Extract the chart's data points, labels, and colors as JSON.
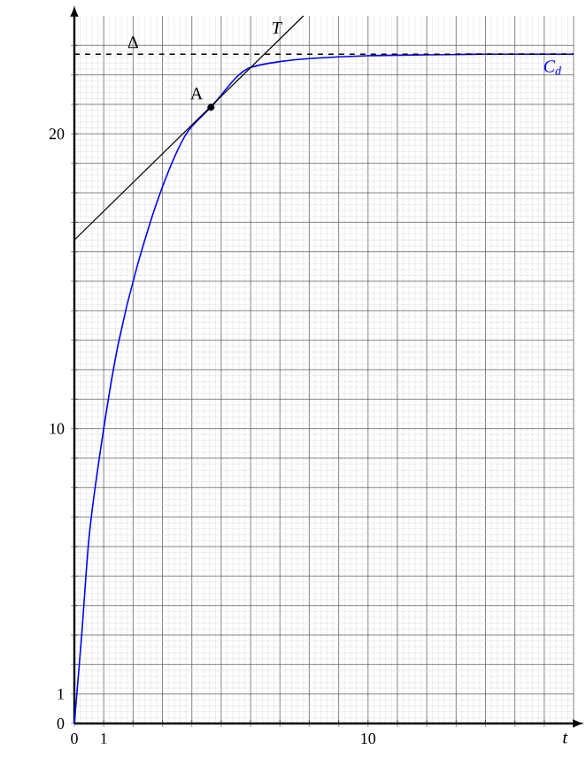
{
  "chart_data": {
    "type": "line",
    "xlabel": "t",
    "xlim": [
      0,
      17
    ],
    "ylim": [
      0,
      24
    ],
    "xticks": [
      0,
      1,
      {
        "value": 2,
        "label": null
      },
      {
        "value": 3,
        "label": null
      },
      {
        "value": 4,
        "label": null
      },
      {
        "value": 5,
        "label": null
      },
      {
        "value": 6,
        "label": null
      },
      {
        "value": 7,
        "label": null
      },
      {
        "value": 8,
        "label": null
      },
      {
        "value": 9,
        "label": null
      },
      10,
      {
        "value": 11,
        "label": null
      },
      {
        "value": 12,
        "label": null
      },
      {
        "value": 13,
        "label": null
      },
      {
        "value": 14,
        "label": null
      },
      {
        "value": 15,
        "label": null
      },
      {
        "value": 16,
        "label": null
      },
      {
        "value": 17,
        "label": null
      }
    ],
    "yticks": [
      0,
      1,
      {
        "value": 2,
        "label": null
      },
      {
        "value": 3,
        "label": null
      },
      {
        "value": 4,
        "label": null
      },
      {
        "value": 5,
        "label": null
      },
      {
        "value": 6,
        "label": null
      },
      {
        "value": 7,
        "label": null
      },
      {
        "value": 8,
        "label": null
      },
      {
        "value": 9,
        "label": null
      },
      10,
      {
        "value": 11,
        "label": null
      },
      {
        "value": 12,
        "label": null
      },
      {
        "value": 13,
        "label": null
      },
      {
        "value": 14,
        "label": null
      },
      {
        "value": 15,
        "label": null
      },
      {
        "value": 16,
        "label": null
      },
      {
        "value": 17,
        "label": null
      },
      {
        "value": 18,
        "label": null
      },
      {
        "value": 19,
        "label": null
      },
      20,
      {
        "value": 21,
        "label": null
      },
      {
        "value": 22,
        "label": null
      },
      {
        "value": 23,
        "label": null
      }
    ],
    "grid": true,
    "legend": false,
    "series": [
      {
        "name": "C$_{d}$",
        "color": "#0000ff",
        "x": [
          0,
          0.25,
          0.52,
          1,
          1.5,
          2.15,
          3,
          3.81,
          4.65,
          5.5,
          6,
          7,
          8,
          10,
          12,
          14,
          17
        ],
        "values": [
          0,
          3.0,
          6.5,
          10,
          12.9,
          15.55,
          18.2,
          20,
          20.9,
          21.9,
          22.25,
          22.45,
          22.55,
          22.65,
          22.68,
          22.7,
          22.7
        ]
      },
      {
        "name": "T",
        "type": "line",
        "color": "#000000",
        "x": [
          0,
          7.8
        ],
        "values": [
          16.4,
          24
        ]
      },
      {
        "type": "scatter",
        "color": "#000000",
        "x": [
          4.65
        ],
        "values": [
          20.9
        ]
      }
    ],
    "ref_lines": [
      {
        "axis": "y",
        "value": 22.7,
        "label": "Δ",
        "color": "#000000",
        "line_style": "dashed"
      }
    ],
    "annotations": [
      {
        "text": "A",
        "x": 4.65,
        "y": 20.9
      }
    ]
  }
}
